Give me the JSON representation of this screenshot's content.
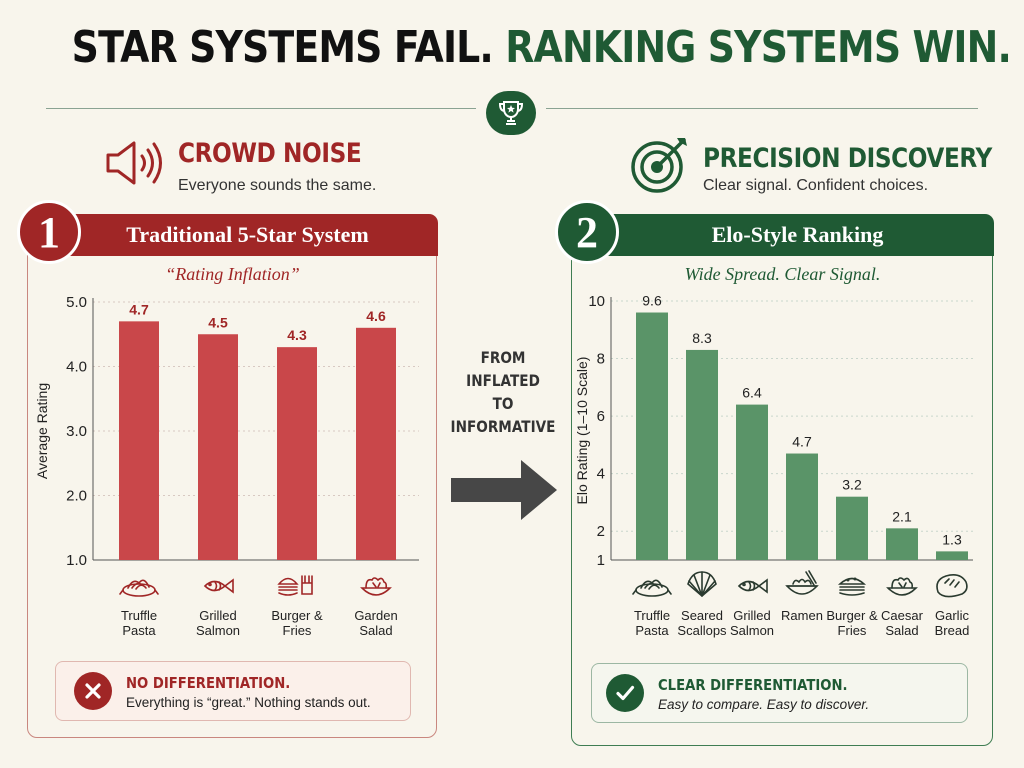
{
  "headline": {
    "part1": "STAR SYSTEMS FAIL.",
    "part2": "RANKING SYSTEMS WIN."
  },
  "left_section": {
    "icon": "megaphone-speaker-icon",
    "title": "CROWD NOISE",
    "subtitle": "Everyone sounds the same."
  },
  "right_section": {
    "icon": "target-arrow-icon",
    "title": "PRECISION DISCOVERY",
    "subtitle": "Clear signal. Confident choices."
  },
  "transition_label": [
    "FROM",
    "INFLATED",
    "TO",
    "INFORMATIVE"
  ],
  "left_panel": {
    "number": "1",
    "header": "Traditional 5-Star System",
    "subtitle": "“Rating Inflation”"
  },
  "right_panel": {
    "number": "2",
    "header": "Elo-Style Ranking",
    "subtitle": "Wide Spread. Clear Signal."
  },
  "left_callout": {
    "icon": "x-circle-icon",
    "title": "NO DIFFERENTIATION.",
    "text": "Everything is “great.” Nothing stands out."
  },
  "right_callout": {
    "icon": "check-circle-icon",
    "title": "CLEAR DIFFERENTIATION.",
    "text": "Easy to compare. Easy to discover."
  },
  "colors": {
    "red": "#a02626",
    "red_bar": "#c9474a",
    "green": "#1f5a34",
    "green_bar": "#5a9468",
    "background": "#f8f5ec"
  },
  "chart_data": [
    {
      "type": "bar",
      "categories": [
        "Truffle\nPasta",
        "Grilled\nSalmon",
        "Burger &\nFries",
        "Garden\nSalad"
      ],
      "icons": [
        "pasta-icon",
        "fish-icon",
        "burger-fries-icon",
        "salad-icon"
      ],
      "values": [
        4.7,
        4.5,
        4.3,
        4.6
      ],
      "data_labels": [
        "4.7",
        "4.5",
        "4.3",
        "4.6"
      ],
      "ylabel": "Average Rating",
      "ylim": [
        1.0,
        5.0
      ],
      "yticks": [
        1.0,
        2.0,
        3.0,
        4.0,
        5.0
      ],
      "ytick_labels": [
        "1.0",
        "2.0",
        "3.0",
        "4.0",
        "5.0"
      ],
      "grid": true
    },
    {
      "type": "bar",
      "categories": [
        "Truffle\nPasta",
        "Seared\nScallops",
        "Grilled\nSalmon",
        "Ramen",
        "Burger &\nFries",
        "Caesar\nSalad",
        "Garlic\nBread"
      ],
      "icons": [
        "pasta-icon",
        "scallop-icon",
        "fish-icon",
        "ramen-icon",
        "burger-icon",
        "salad-icon",
        "bread-icon"
      ],
      "values": [
        9.6,
        8.3,
        6.4,
        4.7,
        3.2,
        2.1,
        1.3
      ],
      "data_labels": [
        "9.6",
        "8.3",
        "6.4",
        "4.7",
        "3.2",
        "2.1",
        "1.3"
      ],
      "ylabel": "Elo Rating (1–10 Scale)",
      "ylim": [
        1,
        10
      ],
      "yticks": [
        1,
        2,
        4,
        6,
        8,
        10
      ],
      "ytick_labels": [
        "1",
        "2",
        "4",
        "6",
        "8",
        "10"
      ],
      "grid": true
    }
  ]
}
